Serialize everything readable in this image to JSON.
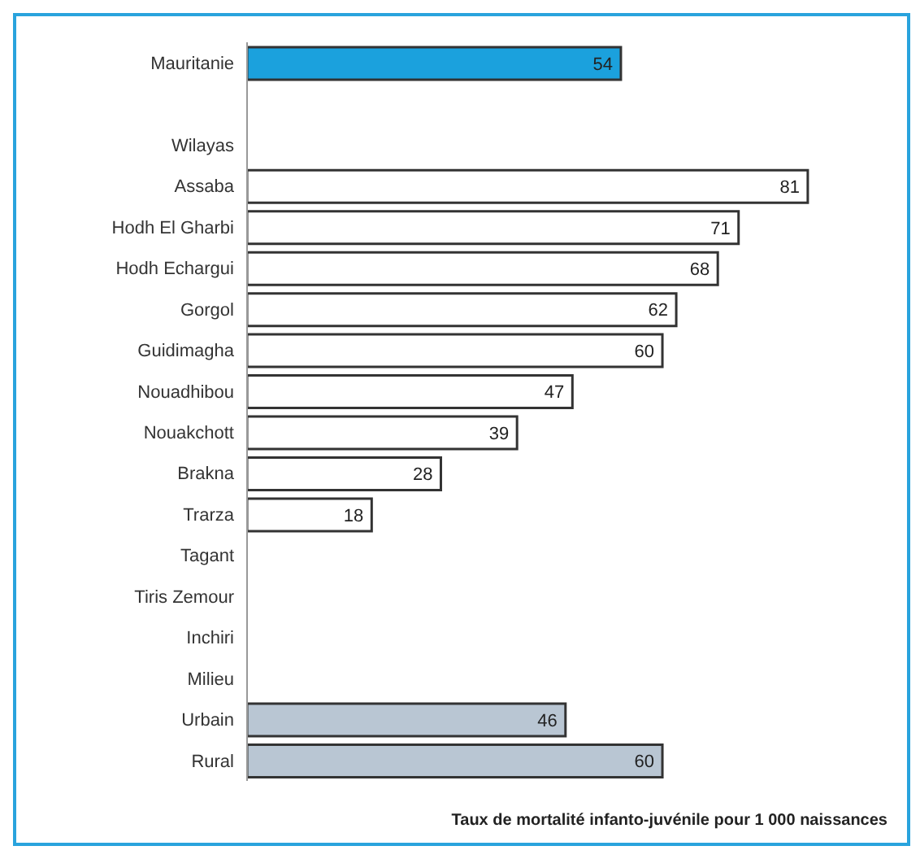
{
  "chart_data": {
    "type": "bar",
    "orientation": "horizontal",
    "xlabel": "Taux de mortalité infanto-juvénile pour 1 000 naissances",
    "categories": [
      "Mauritanie",
      null,
      "Wilayas",
      "Assaba",
      "Hodh El Gharbi",
      "Hodh Echargui",
      "Gorgol",
      "Guidimagha",
      "Nouadhibou",
      "Nouakchott",
      "Brakna",
      "Trarza",
      "Tagant",
      "Tiris Zemour",
      "Inchiri",
      "Milieu",
      "Urbain",
      "Rural"
    ],
    "values": [
      54,
      null,
      null,
      81,
      71,
      68,
      62,
      60,
      47,
      39,
      28,
      18,
      null,
      null,
      null,
      null,
      46,
      60
    ],
    "colors": [
      "#1ba1dd",
      "#ffffff",
      "#ffffff",
      "#ffffff",
      "#ffffff",
      "#ffffff",
      "#ffffff",
      "#ffffff",
      "#ffffff",
      "#ffffff",
      "#ffffff",
      "#ffffff",
      "#ffffff",
      "#ffffff",
      "#ffffff",
      "#ffffff",
      "#b9c6d3",
      "#b9c6d3"
    ],
    "tick_labels": "y",
    "data_labels": true
  }
}
